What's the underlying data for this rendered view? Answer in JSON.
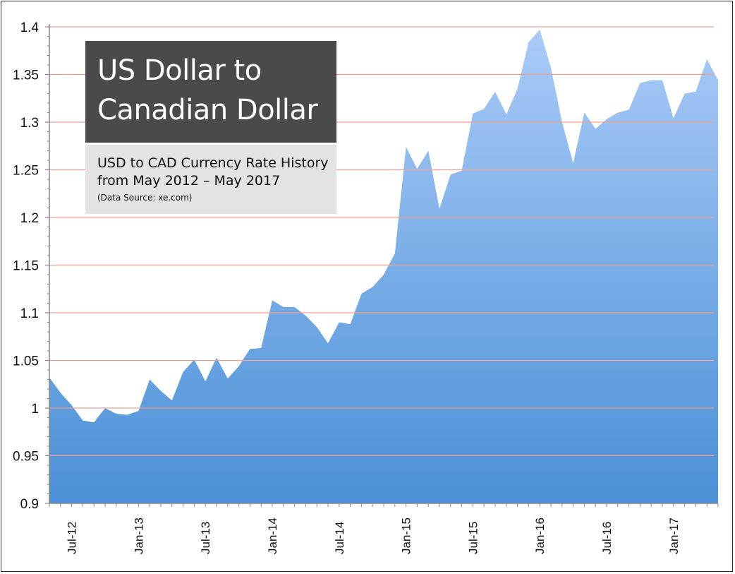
{
  "chart_data": {
    "type": "area",
    "title": "US Dollar to Canadian Dollar",
    "subtitle": "USD to CAD Currency Rate History\nfrom May 2012 – May 2017",
    "source": "(Data Source: xe.com)",
    "xlabel": "",
    "ylabel": "",
    "ylim": [
      0.9,
      1.4
    ],
    "yticks": [
      "0.9",
      "0.95",
      "1",
      "1.05",
      "1.1",
      "1.15",
      "1.2",
      "1.25",
      "1.3",
      "1.35",
      "1.4"
    ],
    "xticks": [
      {
        "label": "Jul-12",
        "x": "2012-07"
      },
      {
        "label": "Jan-13",
        "x": "2013-01"
      },
      {
        "label": "Jul-13",
        "x": "2013-07"
      },
      {
        "label": "Jan-14",
        "x": "2014-01"
      },
      {
        "label": "Jul-14",
        "x": "2014-07"
      },
      {
        "label": "Jan-15",
        "x": "2015-01"
      },
      {
        "label": "Jul-15",
        "x": "2015-07"
      },
      {
        "label": "Jan-16",
        "x": "2016-01"
      },
      {
        "label": "Jul-16",
        "x": "2016-07"
      },
      {
        "label": "Jan-17",
        "x": "2017-01"
      }
    ],
    "grid": true,
    "legend": "none",
    "colors": {
      "fill_top": "#aacbf8",
      "fill_bottom": "#4a90d6",
      "grid": "#f0a090",
      "axis": "#888888"
    },
    "x": [
      "2012-05",
      "2012-06",
      "2012-07",
      "2012-08",
      "2012-09",
      "2012-10",
      "2012-11",
      "2012-12",
      "2013-01",
      "2013-02",
      "2013-03",
      "2013-04",
      "2013-05",
      "2013-06",
      "2013-07",
      "2013-08",
      "2013-09",
      "2013-10",
      "2013-11",
      "2013-12",
      "2014-01",
      "2014-02",
      "2014-03",
      "2014-04",
      "2014-05",
      "2014-06",
      "2014-07",
      "2014-08",
      "2014-09",
      "2014-10",
      "2014-11",
      "2014-12",
      "2015-01",
      "2015-02",
      "2015-03",
      "2015-04",
      "2015-05",
      "2015-06",
      "2015-07",
      "2015-08",
      "2015-09",
      "2015-10",
      "2015-11",
      "2015-12",
      "2016-01",
      "2016-02",
      "2016-03",
      "2016-04",
      "2016-05",
      "2016-06",
      "2016-07",
      "2016-08",
      "2016-09",
      "2016-10",
      "2016-11",
      "2016-12",
      "2017-01",
      "2017-02",
      "2017-03",
      "2017-04",
      "2017-05"
    ],
    "values": [
      1.032,
      1.016,
      1.003,
      0.987,
      0.985,
      1.0,
      0.994,
      0.993,
      0.997,
      1.03,
      1.018,
      1.008,
      1.038,
      1.051,
      1.028,
      1.053,
      1.031,
      1.044,
      1.062,
      1.063,
      1.113,
      1.106,
      1.106,
      1.097,
      1.085,
      1.068,
      1.09,
      1.088,
      1.12,
      1.127,
      1.14,
      1.162,
      1.274,
      1.251,
      1.27,
      1.209,
      1.245,
      1.249,
      1.309,
      1.314,
      1.332,
      1.308,
      1.335,
      1.384,
      1.397,
      1.357,
      1.3,
      1.257,
      1.31,
      1.293,
      1.303,
      1.31,
      1.313,
      1.341,
      1.344,
      1.344,
      1.304,
      1.33,
      1.332,
      1.366,
      1.344
    ]
  }
}
